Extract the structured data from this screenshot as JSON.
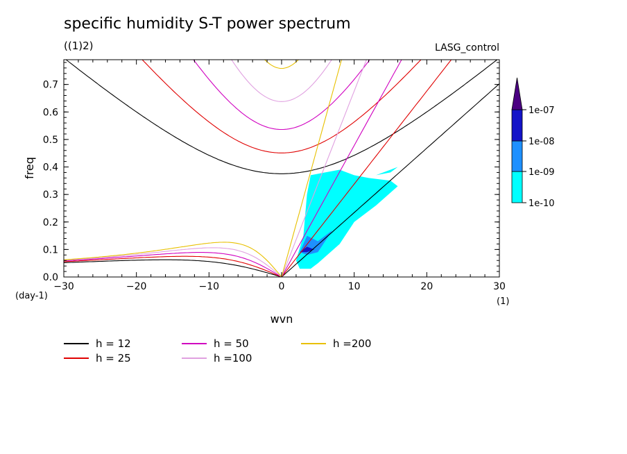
{
  "title": "specific humidity S-T power spectrum",
  "subtitle": "((1)2)",
  "run_name": "LASG_control",
  "chart_data": {
    "type": "contour",
    "xlabel": "wvn",
    "ylabel": "freq",
    "x_unit": "(1)",
    "y_unit": "(day-1)",
    "xlim": [
      -30,
      30
    ],
    "ylim": [
      0,
      0.79
    ],
    "xticks": [
      -30,
      -20,
      -10,
      0,
      10,
      20,
      30
    ],
    "yticks": [
      0.0,
      0.1,
      0.2,
      0.3,
      0.4,
      0.5,
      0.6,
      0.7
    ],
    "ytick_labels": [
      "0.0",
      "0.1",
      "0.2",
      "0.3",
      "0.4",
      "0.5",
      "0.6",
      "0.7"
    ],
    "colorbar": {
      "levels": [
        "1e-10",
        "1e-09",
        "1e-08",
        "1e-07"
      ],
      "colors": [
        "#00ffff",
        "#1e90ff",
        "#1414c8",
        "#4b0082"
      ]
    },
    "series": [
      {
        "name": "h = 12",
        "h": 12,
        "color": "#000000"
      },
      {
        "name": "h = 25",
        "h": 25,
        "color": "#e00000"
      },
      {
        "name": "h = 50",
        "h": 50,
        "color": "#d000c0"
      },
      {
        "name": "h =100",
        "h": 100,
        "color": "#e0a0e0"
      },
      {
        "name": "h =200",
        "h": 200,
        "color": "#e8c000"
      }
    ],
    "shaded_regions": [
      {
        "level": "1e-10",
        "polygon": [
          [
            2,
            0.06
          ],
          [
            3,
            0.15
          ],
          [
            3.5,
            0.3
          ],
          [
            4,
            0.37
          ],
          [
            6,
            0.38
          ],
          [
            8,
            0.39
          ],
          [
            10,
            0.37
          ],
          [
            12,
            0.36
          ],
          [
            15,
            0.35
          ],
          [
            16,
            0.33
          ],
          [
            13,
            0.26
          ],
          [
            10,
            0.2
          ],
          [
            8,
            0.12
          ],
          [
            5,
            0.05
          ],
          [
            4,
            0.03
          ],
          [
            2.5,
            0.03
          ]
        ]
      },
      {
        "level": "1e-10",
        "polygon": [
          [
            13,
            0.37
          ],
          [
            15,
            0.39
          ],
          [
            16,
            0.4
          ],
          [
            15,
            0.38
          ]
        ]
      },
      {
        "level": "1e-09",
        "polygon": [
          [
            2.5,
            0.09
          ],
          [
            3.5,
            0.15
          ],
          [
            5,
            0.13
          ],
          [
            6,
            0.15
          ],
          [
            7,
            0.17
          ],
          [
            5,
            0.09
          ],
          [
            3.5,
            0.08
          ]
        ]
      },
      {
        "level": "1e-08",
        "polygon": [
          [
            2.5,
            0.09
          ],
          [
            3.5,
            0.11
          ],
          [
            4.5,
            0.1
          ],
          [
            3.5,
            0.09
          ]
        ]
      }
    ]
  }
}
